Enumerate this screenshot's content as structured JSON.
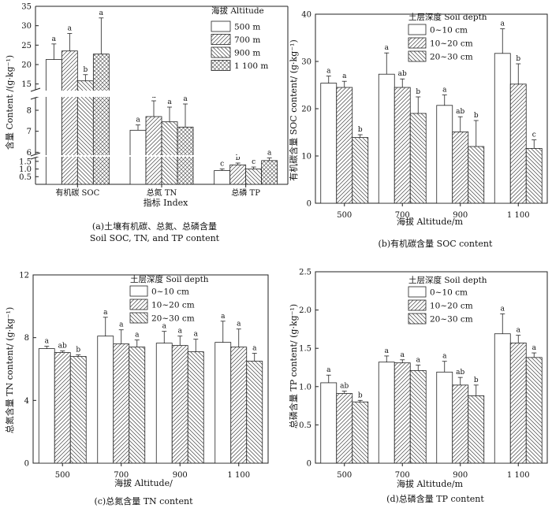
{
  "chart_data": [
    {
      "id": "a",
      "type": "bar",
      "title": "(a)土壤有机碳、总氮、总磷含量",
      "subtitle": "Soil SOC, TN, and TP content",
      "xlabel": "指标 Index",
      "ylabel": "含量 Content /(g·kg⁻¹)",
      "categories": [
        "有机碳 SOC",
        "总氮 TN",
        "总磷 TP"
      ],
      "legend_title": "海拔 Altitude",
      "legend_position": "top-right",
      "series": [
        {
          "name": "500 m",
          "pattern": "none",
          "values": [
            21.3,
            7.05,
            0.9
          ],
          "errors": [
            4.0,
            0.25,
            0.1
          ],
          "labels": [
            "a",
            "a",
            "c"
          ]
        },
        {
          "name": "700 m",
          "pattern": "diag-right",
          "values": [
            23.5,
            7.7,
            1.27
          ],
          "errors": [
            4.5,
            0.75,
            0.12
          ],
          "labels": [
            "a",
            "a",
            "b"
          ]
        },
        {
          "name": "900 m",
          "pattern": "diag-left",
          "values": [
            15.8,
            7.45,
            1.0
          ],
          "errors": [
            1.6,
            0.7,
            0.13
          ],
          "labels": [
            "b",
            "a",
            "c"
          ]
        },
        {
          "name": "1 100 m",
          "pattern": "cross",
          "values": [
            22.7,
            7.2,
            1.55
          ],
          "errors": [
            9.3,
            1.1,
            0.17
          ],
          "labels": [
            "a",
            "a",
            "a"
          ]
        }
      ],
      "axis_breaks": [
        {
          "range": [
            0,
            1.75
          ],
          "ticks": [
            "0.5",
            "1.0",
            "1.5"
          ]
        },
        {
          "range": [
            5.9,
            8.6
          ],
          "ticks": [
            "6",
            "7",
            "8"
          ]
        },
        {
          "range": [
            13.5,
            35
          ],
          "ticks": [
            "15",
            "20",
            "25",
            "30",
            "35"
          ]
        }
      ]
    },
    {
      "id": "b",
      "type": "bar",
      "title": "(b)有机碳含量 SOC content",
      "xlabel": "海拔 Altitude/m",
      "ylabel": "有机碳含量 SOC content/ (g·kg⁻¹)",
      "categories": [
        "500",
        "700",
        "900",
        "1 100"
      ],
      "ylim": [
        0,
        40
      ],
      "yticks": [
        "0",
        "10",
        "20",
        "30",
        "40"
      ],
      "legend_title": "土层深度 Soil depth",
      "legend_position": "top-left",
      "series": [
        {
          "name": "0~10 cm",
          "pattern": "none",
          "values": [
            25.4,
            27.3,
            20.7,
            31.7
          ],
          "errors": [
            1.5,
            4.5,
            2.2,
            5.2
          ],
          "labels": [
            "a",
            "a",
            "a",
            "a"
          ]
        },
        {
          "name": "10~20 cm",
          "pattern": "diag-right",
          "values": [
            24.5,
            24.5,
            15.1,
            25.2
          ],
          "errors": [
            1.3,
            1.8,
            3.2,
            4.3
          ],
          "labels": [
            "a",
            "ab",
            "ab",
            "b"
          ]
        },
        {
          "name": "20~30 cm",
          "pattern": "diag-left",
          "values": [
            13.9,
            19.0,
            12.0,
            11.6
          ],
          "errors": [
            0.6,
            3.5,
            5.5,
            1.8
          ],
          "labels": [
            "b",
            "b",
            "b",
            "c"
          ]
        }
      ]
    },
    {
      "id": "c",
      "type": "bar",
      "title": "(c)总氮含量 TN content",
      "xlabel": "海拔 Altitude/",
      "ylabel": "总氮含量 TN content/ (g·kg⁻¹)",
      "categories": [
        "500",
        "700",
        "900",
        "1 100"
      ],
      "ylim": [
        0,
        12
      ],
      "yticks": [
        "0",
        "4",
        "8",
        "12"
      ],
      "legend_title": "土层深度 Soil depth",
      "legend_position": "top-center",
      "series": [
        {
          "name": "0~10 cm",
          "pattern": "none",
          "values": [
            7.3,
            8.1,
            7.65,
            7.7
          ],
          "errors": [
            0.15,
            1.2,
            0.75,
            1.35
          ],
          "labels": [
            "a",
            "a",
            "a",
            "a"
          ]
        },
        {
          "name": "10~20 cm",
          "pattern": "diag-right",
          "values": [
            7.05,
            7.6,
            7.5,
            7.4
          ],
          "errors": [
            0.1,
            0.9,
            0.6,
            1.15
          ],
          "labels": [
            "ab",
            "a",
            "a",
            "a"
          ]
        },
        {
          "name": "20~30 cm",
          "pattern": "diag-left",
          "values": [
            6.8,
            7.4,
            7.1,
            6.5
          ],
          "errors": [
            0.1,
            0.45,
            0.8,
            0.5
          ],
          "labels": [
            "b",
            "a",
            "a",
            "a"
          ]
        }
      ]
    },
    {
      "id": "d",
      "type": "bar",
      "title": "(d)总磷含量 TP content",
      "xlabel": "海拔 Altitude/m",
      "ylabel": "总磷含量 TP content/ (g·kg⁻¹)",
      "categories": [
        "500",
        "700",
        "900",
        "1 100"
      ],
      "ylim": [
        0,
        2.5
      ],
      "yticks": [
        "0",
        "0.5",
        "1.0",
        "1.5",
        "2.0",
        "2.5"
      ],
      "legend_title": "土层深度 Soil depth",
      "legend_position": "top-center",
      "series": [
        {
          "name": "0~10 cm",
          "pattern": "none",
          "values": [
            1.05,
            1.32,
            1.19,
            1.69
          ],
          "errors": [
            0.1,
            0.08,
            0.14,
            0.26
          ],
          "labels": [
            "a",
            "a",
            "a",
            "a"
          ]
        },
        {
          "name": "10~20 cm",
          "pattern": "diag-right",
          "values": [
            0.91,
            1.31,
            1.02,
            1.57
          ],
          "errors": [
            0.03,
            0.04,
            0.1,
            0.1
          ],
          "labels": [
            "ab",
            "a",
            "ab",
            "a"
          ]
        },
        {
          "name": "20~30 cm",
          "pattern": "diag-left",
          "values": [
            0.8,
            1.21,
            0.88,
            1.38
          ],
          "errors": [
            0.02,
            0.07,
            0.14,
            0.06
          ],
          "labels": [
            "b",
            "a",
            "b",
            "a"
          ]
        }
      ]
    }
  ]
}
